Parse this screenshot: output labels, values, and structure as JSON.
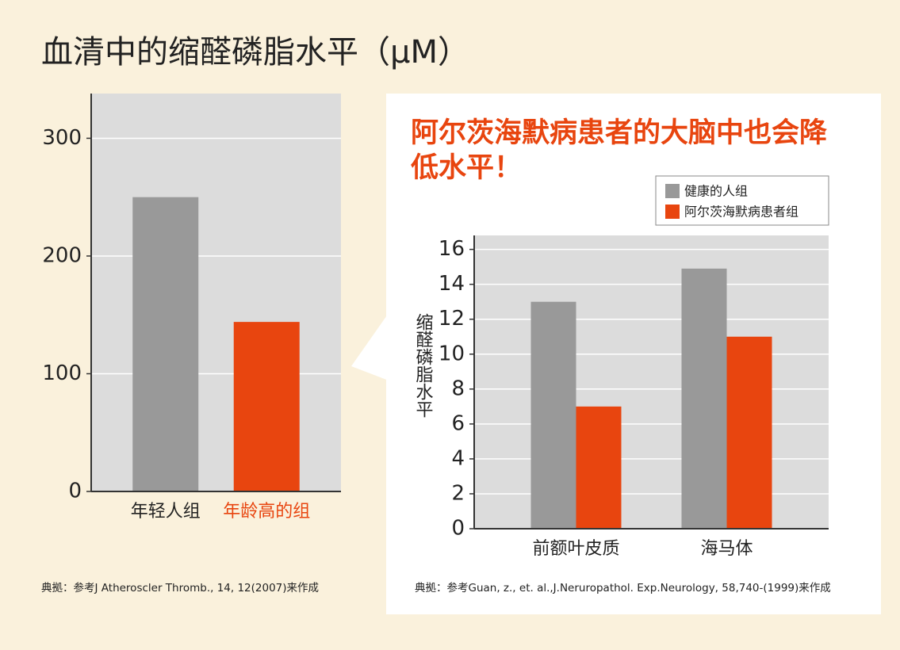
{
  "title": "血清中的缩醛磷脂水平（μM）",
  "chart_data": [
    {
      "type": "bar",
      "categories": [
        "年轻人组",
        "年龄高的组"
      ],
      "values": [
        250,
        144
      ],
      "colors": [
        "#999999",
        "#e8450f"
      ],
      "ylim": [
        0,
        338
      ],
      "yticks": [
        0,
        100,
        200,
        300
      ],
      "grid": true,
      "source": "典拠：参考J Atheroscler Thromb., 14, 12(2007)来作成"
    },
    {
      "type": "bar",
      "title": "阿尔茨海默病患者的大脑中也会降低水平！",
      "y_label": "缩醛磷脂水平",
      "categories": [
        "前额叶皮质",
        "海马体"
      ],
      "series": [
        {
          "name": "健康的人组",
          "color": "#999999",
          "values": [
            13,
            14.9
          ]
        },
        {
          "name": "阿尔茨海默病患者组",
          "color": "#e8450f",
          "values": [
            7,
            11
          ]
        }
      ],
      "ylim": [
        0,
        16.8
      ],
      "yticks": [
        0,
        2,
        4,
        6,
        8,
        10,
        12,
        14,
        16
      ],
      "grid": true,
      "legend": "upper right",
      "source": "典拠：参考Guan, z., et. al.,J.Neruropathol. Exp.Neurology, 58,740-(1999)来作成"
    }
  ]
}
